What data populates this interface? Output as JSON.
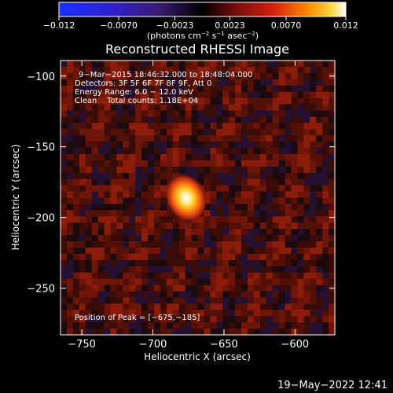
{
  "colorbar": {
    "tick_labels": [
      "−0.012",
      "−0.0070",
      "−0.0023",
      "0.0023",
      "0.0070",
      "0.012"
    ],
    "tick_values": [
      -0.012,
      -0.007,
      -0.0023,
      0.0023,
      0.007,
      0.012
    ],
    "range": [
      -0.012,
      0.012
    ],
    "units_prefix": "(photons cm",
    "units_exp1": "−2",
    "units_mid": " s",
    "units_exp2": "−1",
    "units_mid2": " asec",
    "units_exp3": "−2",
    "units_suffix": ")"
  },
  "chart_data": {
    "type": "heatmap",
    "title": "Reconstructed RHESSI Image",
    "xlabel": "Heliocentric X (arcsec)",
    "ylabel": "Heliocentric Y (arcsec)",
    "xlim": [
      -765,
      -572
    ],
    "ylim": [
      -283,
      -89
    ],
    "xticks": [
      -750,
      -700,
      -650,
      -600
    ],
    "xtick_labels": [
      "−750",
      "−700",
      "−650",
      "−600"
    ],
    "yticks": [
      -100,
      -150,
      -200,
      -250
    ],
    "ytick_labels": [
      "−100",
      "−150",
      "−200",
      "−250"
    ],
    "peak": {
      "x": -675,
      "y": -185,
      "value": 0.012
    },
    "annotations": [
      "9−Mar−2015 18:46:32.000 to 18:48:04.000",
      "Detectors: 3F 5F 6F 7F 8F 9F, Att 0",
      "Energy Range: 6.0 − 12.0 keV",
      "Clean    Total counts: 1.18E+04"
    ],
    "peak_label": "Position of Peak = [−675,−185]"
  },
  "timestamp": "19−May−2022 12:41"
}
